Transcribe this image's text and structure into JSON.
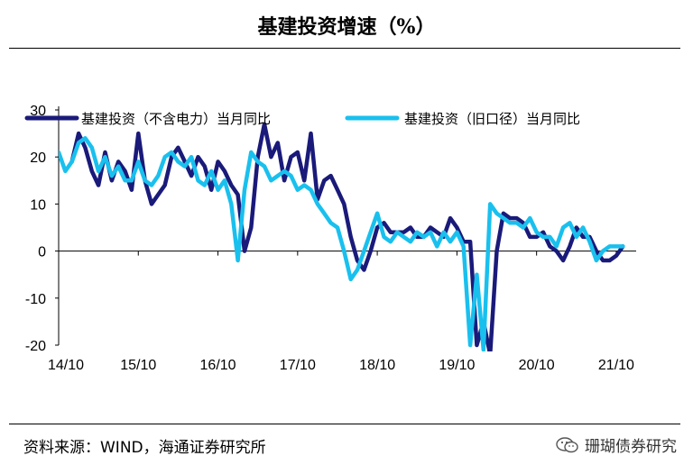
{
  "header": {
    "title": "基建投资增速（%）"
  },
  "footer": {
    "source": "资料来源：WIND，海通证券研究所",
    "watermark": "珊瑚债券研究"
  },
  "colors": {
    "series1": "#1a1a7a",
    "series2": "#19c0ee"
  },
  "chart_data": {
    "type": "line",
    "title": "基建投资增速（%）",
    "xlabel": "",
    "ylabel": "",
    "ylim": [
      -20,
      30
    ],
    "yticks": [
      30,
      20,
      10,
      0,
      -10,
      -20
    ],
    "xticks": [
      "14/10",
      "15/10",
      "16/10",
      "17/10",
      "18/10",
      "19/10",
      "20/10",
      "21/10"
    ],
    "legend_position": "top",
    "x_unit": "months since 14/10",
    "series": [
      {
        "name": "基建投资（不含电力）当月同比",
        "color": "#1a1a7a",
        "points": [
          [
            2,
            19
          ],
          [
            3,
            25
          ],
          [
            4,
            22
          ],
          [
            5,
            17
          ],
          [
            6,
            14
          ],
          [
            7,
            21
          ],
          [
            8,
            15
          ],
          [
            9,
            19
          ],
          [
            10,
            17
          ],
          [
            11,
            13
          ],
          [
            12,
            25
          ],
          [
            13,
            15
          ],
          [
            14,
            10
          ],
          [
            15,
            12
          ],
          [
            16,
            14
          ],
          [
            17,
            20
          ],
          [
            18,
            22
          ],
          [
            19,
            19
          ],
          [
            20,
            16
          ],
          [
            21,
            20
          ],
          [
            22,
            18
          ],
          [
            23,
            13
          ],
          [
            24,
            19
          ],
          [
            25,
            17
          ],
          [
            26,
            14
          ],
          [
            27,
            12
          ],
          [
            28,
            0
          ],
          [
            29,
            5
          ],
          [
            30,
            20
          ],
          [
            31,
            27
          ],
          [
            32,
            20
          ],
          [
            33,
            23
          ],
          [
            34,
            15
          ],
          [
            35,
            20
          ],
          [
            36,
            21
          ],
          [
            37,
            15
          ],
          [
            38,
            25
          ],
          [
            39,
            11
          ],
          [
            40,
            15
          ],
          [
            41,
            16
          ],
          [
            42,
            13
          ],
          [
            43,
            10
          ],
          [
            44,
            3
          ],
          [
            45,
            -2
          ],
          [
            46,
            -4
          ],
          [
            47,
            0
          ],
          [
            48,
            5
          ],
          [
            49,
            6
          ],
          [
            50,
            4
          ],
          [
            51,
            4
          ],
          [
            52,
            4
          ],
          [
            53,
            5
          ],
          [
            54,
            3
          ],
          [
            55,
            3
          ],
          [
            56,
            5
          ],
          [
            57,
            4
          ],
          [
            58,
            3
          ],
          [
            59,
            7
          ],
          [
            60,
            5
          ],
          [
            61,
            2
          ],
          [
            62,
            2
          ],
          [
            63,
            -20
          ],
          [
            64,
            -15
          ],
          [
            65,
            -22
          ],
          [
            66,
            0
          ],
          [
            67,
            8
          ],
          [
            68,
            7
          ],
          [
            69,
            7
          ],
          [
            70,
            6
          ],
          [
            71,
            3
          ],
          [
            72,
            3
          ],
          [
            73,
            4
          ],
          [
            74,
            1
          ],
          [
            75,
            0
          ],
          [
            76,
            -2
          ],
          [
            77,
            1
          ],
          [
            78,
            5
          ],
          [
            79,
            3
          ],
          [
            80,
            3
          ],
          [
            81,
            0
          ],
          [
            82,
            -2
          ],
          [
            83,
            -2
          ],
          [
            84,
            -1
          ],
          [
            85,
            1
          ]
        ]
      },
      {
        "name": "基建投资（旧口径）当月同比",
        "color": "#19c0ee",
        "points": [
          [
            0,
            21
          ],
          [
            1,
            17
          ],
          [
            2,
            19
          ],
          [
            3,
            23
          ],
          [
            4,
            24
          ],
          [
            5,
            22
          ],
          [
            6,
            17
          ],
          [
            7,
            20
          ],
          [
            8,
            16
          ],
          [
            9,
            18
          ],
          [
            10,
            15
          ],
          [
            11,
            15
          ],
          [
            12,
            19
          ],
          [
            13,
            15
          ],
          [
            14,
            14
          ],
          [
            15,
            16
          ],
          [
            16,
            20
          ],
          [
            17,
            21
          ],
          [
            18,
            19
          ],
          [
            19,
            18
          ],
          [
            20,
            20
          ],
          [
            21,
            15
          ],
          [
            22,
            14
          ],
          [
            23,
            17
          ],
          [
            24,
            13
          ],
          [
            25,
            15
          ],
          [
            26,
            10
          ],
          [
            27,
            -2
          ],
          [
            28,
            13
          ],
          [
            29,
            21
          ],
          [
            30,
            19
          ],
          [
            31,
            18
          ],
          [
            32,
            15
          ],
          [
            33,
            16
          ],
          [
            34,
            17
          ],
          [
            35,
            16
          ],
          [
            36,
            13
          ],
          [
            37,
            14
          ],
          [
            38,
            13
          ],
          [
            39,
            10
          ],
          [
            40,
            8
          ],
          [
            41,
            6
          ],
          [
            42,
            5
          ],
          [
            43,
            0
          ],
          [
            44,
            -6
          ],
          [
            45,
            -4
          ],
          [
            46,
            0
          ],
          [
            47,
            4
          ],
          [
            48,
            8
          ],
          [
            49,
            3
          ],
          [
            50,
            2
          ],
          [
            51,
            4
          ],
          [
            52,
            3
          ],
          [
            53,
            2
          ],
          [
            54,
            4
          ],
          [
            55,
            3
          ],
          [
            56,
            4
          ],
          [
            57,
            1
          ],
          [
            58,
            4
          ],
          [
            59,
            2
          ],
          [
            60,
            4
          ],
          [
            61,
            1
          ],
          [
            62,
            -20
          ],
          [
            63,
            -5
          ],
          [
            64,
            -21
          ],
          [
            65,
            10
          ],
          [
            66,
            8
          ],
          [
            67,
            7
          ],
          [
            68,
            6
          ],
          [
            69,
            6
          ],
          [
            70,
            5
          ],
          [
            71,
            7
          ],
          [
            72,
            4
          ],
          [
            73,
            3
          ],
          [
            74,
            3
          ],
          [
            75,
            1
          ],
          [
            76,
            5
          ],
          [
            77,
            6
          ],
          [
            78,
            3
          ],
          [
            79,
            5
          ],
          [
            80,
            2
          ],
          [
            81,
            -2
          ],
          [
            82,
            0
          ],
          [
            83,
            1
          ],
          [
            84,
            1
          ],
          [
            85,
            1
          ]
        ]
      }
    ]
  }
}
